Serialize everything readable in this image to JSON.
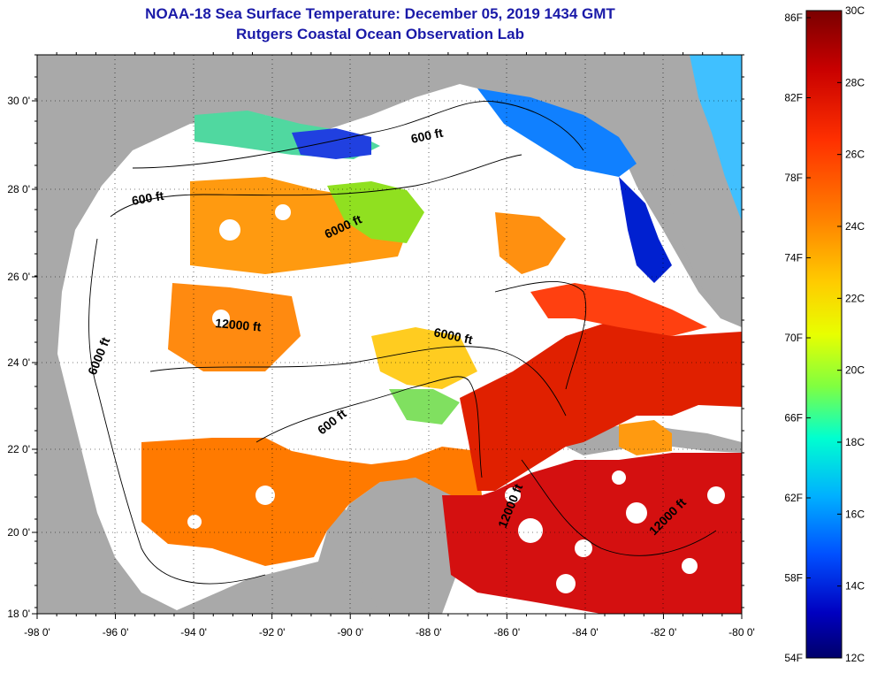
{
  "title": "NOAA-18 Sea Surface Temperature:  December 05, 2019 1434 GMT",
  "subtitle": "Rutgers Coastal Ocean Observation Lab",
  "map": {
    "lon_range": [
      -98,
      -80
    ],
    "lat_range": [
      18,
      31
    ],
    "x_ticks": [
      "-98 0'",
      "-96 0'",
      "-94 0'",
      "-92 0'",
      "-90 0'",
      "-88 0'",
      "-86 0'",
      "-84 0'",
      "-82 0'",
      "-80 0'"
    ],
    "y_ticks": [
      "30 0'",
      "28 0'",
      "26 0'",
      "24 0'",
      "22 0'",
      "20 0'",
      "18 0'"
    ],
    "grid": true,
    "land_color": "#a9a9a9",
    "cloud_color": "#ffffff"
  },
  "contour_labels": [
    "600 ft",
    "600 ft",
    "600 ft",
    "6000 ft",
    "6000 ft",
    "6000 ft",
    "12000 ft",
    "12000 ft",
    "12000 ft"
  ],
  "colorbar": {
    "f_labels": [
      "86F",
      "82F",
      "78F",
      "74F",
      "70F",
      "66F",
      "62F",
      "58F",
      "54F"
    ],
    "c_labels": [
      "30C",
      "28C",
      "26C",
      "24C",
      "22C",
      "20C",
      "18C",
      "16C",
      "14C",
      "12C"
    ],
    "colors": [
      "#7a0000",
      "#c80000",
      "#ff3000",
      "#ff8000",
      "#ffcc00",
      "#e8ff00",
      "#80ff40",
      "#00ffd0",
      "#00b0ff",
      "#0050ff",
      "#0000c0",
      "#00006a"
    ]
  }
}
